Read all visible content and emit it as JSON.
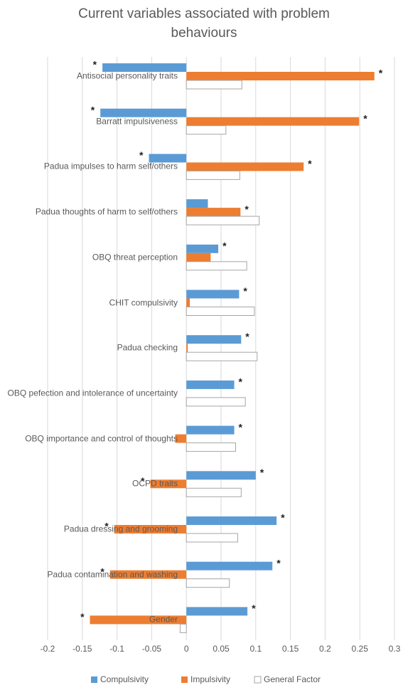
{
  "chart_data": {
    "type": "hbar",
    "title": "Current variables associated with problem behaviours",
    "categories": [
      "Antisocial personality traits",
      "Barratt impulsiveness",
      "Padua impulses to harm self/others",
      "Padua thoughts of harm to self/others",
      "OBQ threat perception",
      "CHIT compulsivity",
      "Padua checking",
      "OBQ pefection and intolerance of uncertainty",
      "OBQ importance and control of thoughts",
      "OCPD traits",
      "Padua dressing and grooming",
      "Padua contamination and washing",
      "Gender"
    ],
    "series": [
      {
        "name": "Compulsivity",
        "color": "#5b9bd5",
        "values": [
          -0.121,
          -0.124,
          -0.054,
          0.031,
          0.046,
          0.076,
          0.079,
          0.069,
          0.069,
          0.1,
          0.13,
          0.124,
          0.088
        ],
        "annotations": [
          "*",
          "*",
          "*",
          null,
          "*",
          "*",
          "*",
          "*",
          "*",
          "*",
          "*",
          "*",
          "*"
        ]
      },
      {
        "name": "Impulsivity",
        "color": "#ed7d31",
        "values": [
          0.271,
          0.249,
          0.169,
          0.078,
          0.035,
          0.005,
          0.002,
          0,
          -0.016,
          -0.052,
          -0.104,
          -0.11,
          -0.139
        ],
        "annotations": [
          "*",
          "*",
          "*",
          "*",
          null,
          null,
          null,
          null,
          null,
          "*",
          "*",
          "*",
          "*"
        ]
      },
      {
        "name": "General Factor",
        "color": "#ffffff",
        "stroke": "#a5a5a5",
        "values": [
          0.08,
          0.057,
          0.077,
          0.105,
          0.087,
          0.098,
          0.102,
          0.085,
          0.071,
          0.079,
          0.074,
          0.062,
          -0.009
        ],
        "annotations": [
          null,
          null,
          null,
          null,
          null,
          null,
          null,
          null,
          null,
          null,
          null,
          null,
          null
        ]
      }
    ],
    "xlim": [
      -0.2,
      0.3
    ],
    "xticks": [
      -0.2,
      -0.15,
      -0.1,
      -0.05,
      0,
      0.05,
      0.1,
      0.15,
      0.2,
      0.25,
      0.3
    ],
    "grid": true
  }
}
